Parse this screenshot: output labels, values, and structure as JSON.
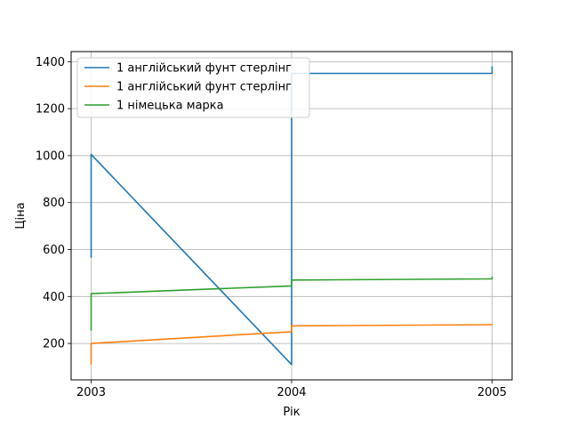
{
  "chart_data": {
    "type": "line",
    "xlabel": "Рік",
    "ylabel": "Ціна",
    "xlim": [
      2002.9,
      2005.1
    ],
    "ylim": [
      45,
      1443
    ],
    "xticks": [
      2003,
      2004,
      2005
    ],
    "xtick_labels": [
      "2003",
      "2004",
      "2005"
    ],
    "yticks": [
      200,
      400,
      600,
      800,
      1000,
      1200,
      1400
    ],
    "ytick_labels": [
      "200",
      "400",
      "600",
      "800",
      "1000",
      "1200",
      "1400"
    ],
    "grid": true,
    "legend_position": "top-left",
    "series": [
      {
        "name": "1 англійський фунт стерлінг",
        "color": "#1f77b4",
        "points": [
          [
            2003.0,
            565
          ],
          [
            2003.0,
            1005
          ],
          [
            2004.0,
            110
          ],
          [
            2004.0,
            1350
          ],
          [
            2005.0,
            1350
          ],
          [
            2005.0,
            1380
          ]
        ]
      },
      {
        "name": "1 англійський фунт стерлінг",
        "color": "#ff7f0e",
        "points": [
          [
            2003.0,
            110
          ],
          [
            2003.0,
            200
          ],
          [
            2004.0,
            250
          ],
          [
            2004.0,
            275
          ],
          [
            2005.0,
            280
          ],
          [
            2005.0,
            282
          ]
        ]
      },
      {
        "name": "1 німецька марка",
        "color": "#2ca02c",
        "points": [
          [
            2003.0,
            255
          ],
          [
            2003.0,
            412
          ],
          [
            2004.0,
            445
          ],
          [
            2004.0,
            470
          ],
          [
            2005.0,
            475
          ],
          [
            2005.0,
            485
          ]
        ]
      }
    ]
  }
}
